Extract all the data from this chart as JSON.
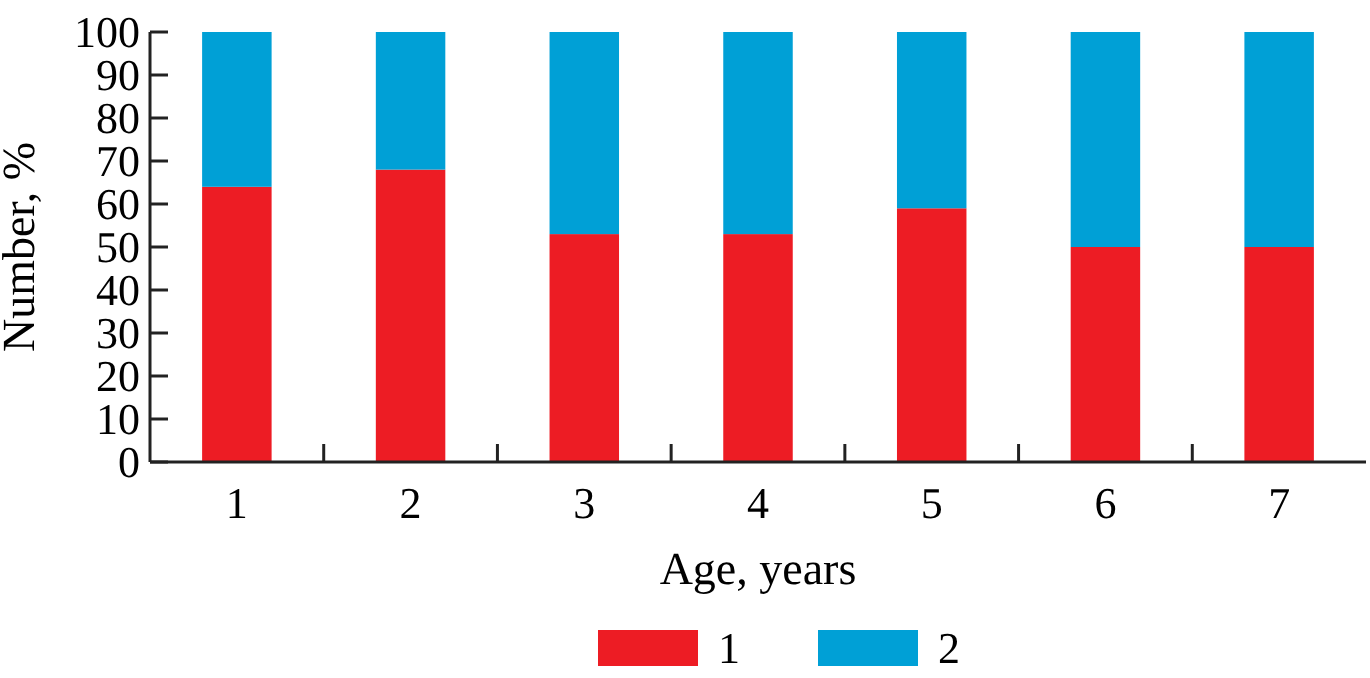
{
  "chart_data": {
    "type": "bar",
    "stacked": true,
    "xlabel": "Age, years",
    "ylabel": "Number, %",
    "categories": [
      "1",
      "2",
      "3",
      "4",
      "5",
      "6",
      "7"
    ],
    "series": [
      {
        "name": "1",
        "color": "#ed1c24",
        "values": [
          64,
          68,
          53,
          53,
          59,
          50,
          50
        ]
      },
      {
        "name": "2",
        "color": "#00a0d6",
        "values": [
          36,
          32,
          47,
          47,
          41,
          50,
          50
        ]
      }
    ],
    "ylim": [
      0,
      100
    ],
    "yticks": [
      0,
      10,
      20,
      30,
      40,
      50,
      60,
      70,
      80,
      90,
      100
    ],
    "legend": "bottom"
  }
}
